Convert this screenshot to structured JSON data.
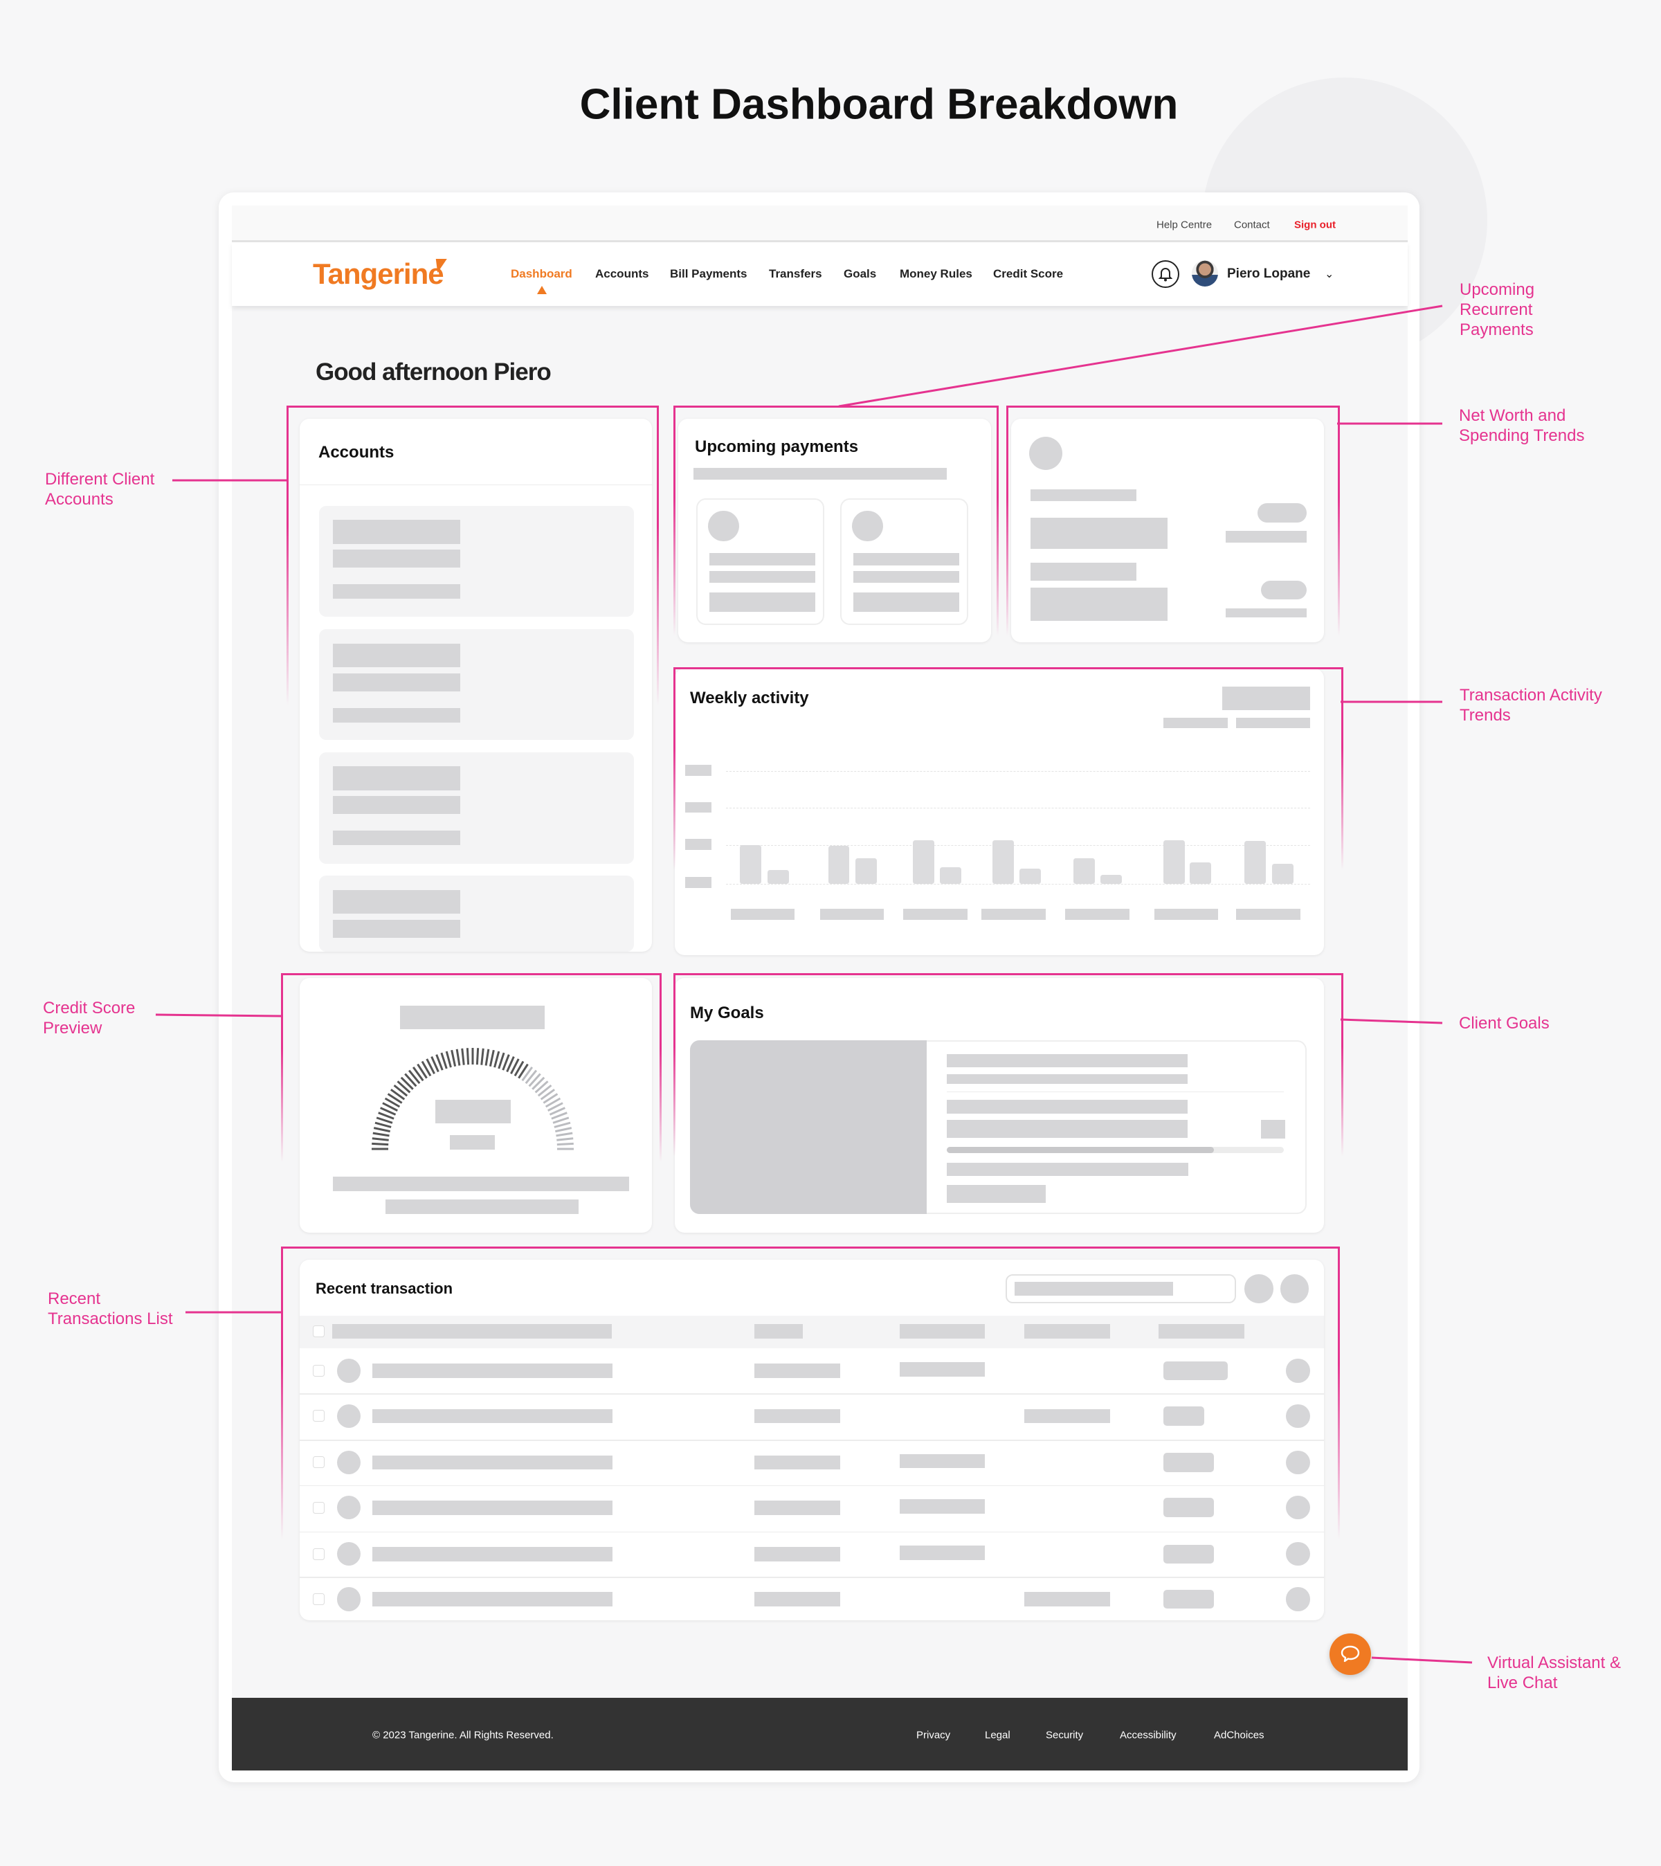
{
  "page_title": "Client Dashboard Breakdown",
  "topbar": {
    "help": "Help Centre",
    "contact": "Contact",
    "signout": "Sign out"
  },
  "nav": {
    "logo": "Tangerine",
    "items": [
      {
        "label": "Dashboard",
        "active": true
      },
      {
        "label": "Accounts"
      },
      {
        "label": "Bill Payments"
      },
      {
        "label": "Transfers"
      },
      {
        "label": "Goals"
      },
      {
        "label": "Money Rules"
      },
      {
        "label": "Credit Score"
      }
    ],
    "user_name": "Piero Lopane",
    "icons": [
      "bell-icon",
      "avatar",
      "chevron-down-icon"
    ]
  },
  "greeting": "Good afternoon Piero",
  "cards": {
    "accounts": "Accounts",
    "upcoming": "Upcoming payments",
    "weekly": "Weekly activity",
    "goals": "My Goals",
    "recent": "Recent transaction"
  },
  "footer": {
    "copyright": "© 2023 Tangerine. All Rights Reserved.",
    "links": [
      "Privacy",
      "Legal",
      "Security",
      "Accessibility",
      "AdChoices"
    ]
  },
  "annotations": {
    "upcoming": [
      "Upcoming",
      "Recurrent",
      "Payments"
    ],
    "networth": [
      "Net Worth and",
      "Spending Trends"
    ],
    "transaction": [
      "Transaction Activity",
      "Trends"
    ],
    "goals": [
      "Client Goals"
    ],
    "assistant": [
      "Virtual Assistant &",
      "Live Chat"
    ],
    "accounts": [
      "Different Client",
      "Accounts"
    ],
    "credit": [
      "Credit Score",
      "Preview"
    ],
    "recent": [
      "Recent",
      "Transactions List"
    ]
  },
  "colors": {
    "brand": "#f07a22",
    "annotation": "#e5338f",
    "signout": "#e8202a",
    "footer": "#333333"
  }
}
